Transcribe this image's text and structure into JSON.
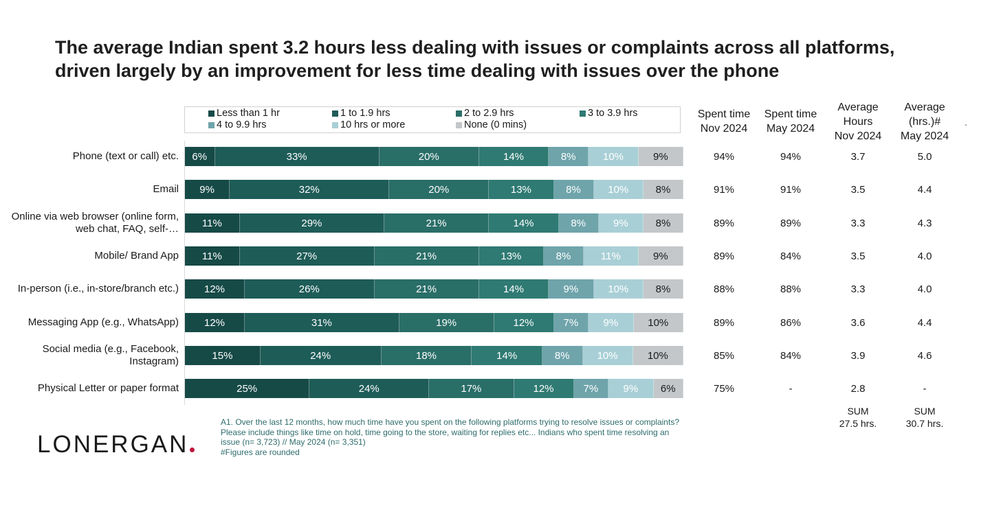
{
  "title": "The average Indian spent 3.2 hours less dealing with issues or complaints across all platforms, driven largely by an improvement for less time dealing with issues over the phone",
  "legend": [
    {
      "label": "Less than 1 hr",
      "color": "#164a47"
    },
    {
      "label": "1 to 1.9 hrs",
      "color": "#1e5c58"
    },
    {
      "label": "2 to 2.9 hrs",
      "color": "#2a6e68"
    },
    {
      "label": "3 to 3.9 hrs",
      "color": "#2f7a73"
    },
    {
      "label": "4 to 9.9 hrs",
      "color": "#6fa4ab"
    },
    {
      "label": "10 hrs or more",
      "color": "#a9cfd6"
    },
    {
      "label": "None (0 mins)",
      "color": "#c3c7c9"
    }
  ],
  "columns": {
    "spent_nov": "Spent time\nNov 2024",
    "spent_may": "Spent time\nMay 2024",
    "avg_nov": "Average\nHours\nNov 2024",
    "avg_may": "Average\n(hrs.)#\nMay 2024"
  },
  "chart_data": {
    "type": "bar",
    "stacked": true,
    "orientation": "horizontal",
    "categories": [
      "Phone (text or call) etc.",
      "Email",
      "Online via web browser (online form, web chat, FAQ, self-…",
      "Mobile/ Brand App",
      "In-person (i.e., in-store/branch etc.)",
      "Messaging App (e.g., WhatsApp)",
      "Social media (e.g., Facebook, Instagram)",
      "Physical Letter or paper format"
    ],
    "series": [
      {
        "name": "Less than 1 hr",
        "values": [
          6,
          9,
          11,
          11,
          12,
          12,
          15,
          25
        ]
      },
      {
        "name": "1 to 1.9 hrs",
        "values": [
          33,
          32,
          29,
          27,
          26,
          31,
          24,
          24
        ]
      },
      {
        "name": "2 to 2.9 hrs",
        "values": [
          20,
          20,
          21,
          21,
          21,
          19,
          18,
          17
        ]
      },
      {
        "name": "3 to 3.9 hrs",
        "values": [
          14,
          13,
          14,
          13,
          14,
          12,
          14,
          12
        ]
      },
      {
        "name": "4 to 9.9 hrs",
        "values": [
          8,
          8,
          8,
          8,
          9,
          7,
          8,
          7
        ]
      },
      {
        "name": "10 hrs or more",
        "values": [
          10,
          10,
          9,
          11,
          10,
          9,
          10,
          9
        ]
      },
      {
        "name": "None (0 mins)",
        "values": [
          9,
          8,
          8,
          9,
          8,
          10,
          10,
          6
        ]
      }
    ],
    "label_suffix": "%"
  },
  "table": {
    "spent_nov": [
      "94%",
      "91%",
      "89%",
      "89%",
      "88%",
      "89%",
      "85%",
      "75%"
    ],
    "spent_may": [
      "94%",
      "91%",
      "89%",
      "84%",
      "88%",
      "86%",
      "84%",
      "-"
    ],
    "avg_nov": [
      "3.7",
      "3.5",
      "3.3",
      "3.5",
      "3.3",
      "3.6",
      "3.9",
      "2.8"
    ],
    "avg_may": [
      "5.0",
      "4.4",
      "4.3",
      "4.0",
      "4.0",
      "4.4",
      "4.6",
      "-"
    ]
  },
  "sums": {
    "nov": "SUM\n27.5 hrs.",
    "may": "SUM\n30.7 hrs."
  },
  "footnote": {
    "line1": "A1. Over the last 12 months, how much time have you spent on the following platforms trying to resolve issues or complaints?",
    "line2": "Please include things like time on hold, time going to the store, waiting for replies etc... Indians who spent time resolving an issue (n= 3,723) // May 2024 (n= 3,351)",
    "line3": "#Figures are rounded"
  },
  "logo": "LONERGAN",
  "stray_mark": "."
}
